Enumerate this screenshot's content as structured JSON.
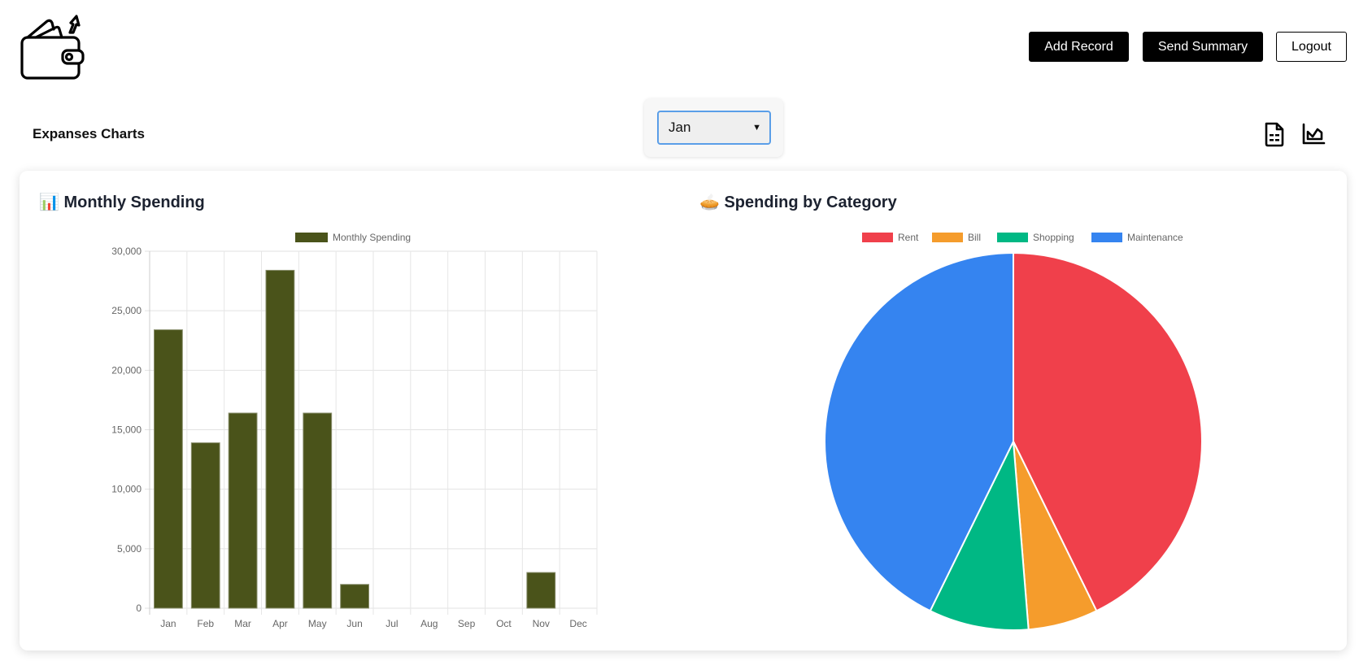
{
  "header": {
    "logo": "wallet-with-money-icon",
    "buttons": {
      "add_record": "Add Record",
      "send_summary": "Send Summary",
      "logout": "Logout"
    }
  },
  "toolbar": {
    "title": "Expanses Charts",
    "month_select": {
      "value": "Jan"
    },
    "icons": [
      "table-file-icon",
      "area-chart-icon"
    ]
  },
  "panels": {
    "bar_title": "📊 Monthly Spending",
    "pie_title": "🥧 Spending by Category"
  },
  "chart_data": [
    {
      "type": "bar",
      "categories": [
        "Jan",
        "Feb",
        "Mar",
        "Apr",
        "May",
        "Jun",
        "Jul",
        "Aug",
        "Sep",
        "Oct",
        "Nov",
        "Dec"
      ],
      "series": [
        {
          "name": "Monthly Spending",
          "values": [
            23400,
            13900,
            16400,
            28400,
            16400,
            2000,
            0,
            0,
            0,
            0,
            3000,
            0
          ],
          "color": "#4a531a"
        }
      ],
      "ylim": [
        0,
        30000
      ],
      "yticks": [
        "0",
        "5,000",
        "10,000",
        "15,000",
        "20,000",
        "25,000",
        "30,000"
      ],
      "grid": true,
      "legend": "top"
    },
    {
      "type": "pie",
      "labels": [
        "Rent",
        "Bill",
        "Shopping",
        "Maintenance"
      ],
      "values": [
        10000,
        1400,
        2000,
        10000
      ],
      "colors": [
        "#f0404b",
        "#f59c2c",
        "#00b884",
        "#3584f0"
      ],
      "legend": "top"
    }
  ]
}
